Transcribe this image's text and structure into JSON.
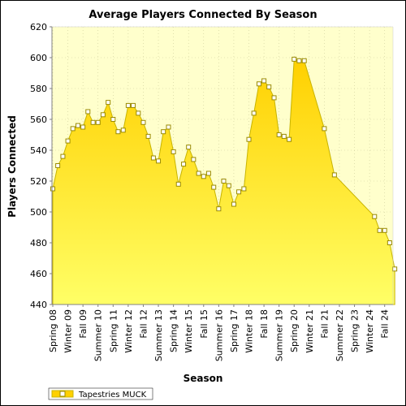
{
  "chart_data": {
    "type": "area",
    "title": "Average Players Connected By Season",
    "xlabel": "Season",
    "ylabel": "Players Connected",
    "ylim": [
      440,
      620
    ],
    "yticks": [
      440,
      460,
      480,
      500,
      520,
      540,
      560,
      580,
      600,
      620
    ],
    "grid": true,
    "legend_position": "bottom-left",
    "colors": {
      "fill_top": "#ffd000",
      "fill_bottom": "#ffff66",
      "line": "#c8b400",
      "plot_bg": "#ffffcc",
      "marker_fill": "#ffffff",
      "marker_stroke": "#9a8a00"
    },
    "x_tick_labels": [
      "Spring 08",
      "Winter 09",
      "Fall 09",
      "Summer 10",
      "Spring 11",
      "Winter 12",
      "Fall 12",
      "Summer 13",
      "Spring 14",
      "Winter 15",
      "Fall 15",
      "Summer 16",
      "Spring 17",
      "Winter 18",
      "Fall 18",
      "Summer 19",
      "Spring 20",
      "Winter 21",
      "Fall 21",
      "Summer 22",
      "Spring 23",
      "Winter 24",
      "Fall 24"
    ],
    "series": [
      {
        "name": "Tapestries MUCK",
        "points": [
          {
            "x": 0.0,
            "y": 515
          },
          {
            "x": 0.33,
            "y": 530
          },
          {
            "x": 0.67,
            "y": 536
          },
          {
            "x": 1.0,
            "y": 546
          },
          {
            "x": 1.33,
            "y": 554
          },
          {
            "x": 1.67,
            "y": 556
          },
          {
            "x": 2.0,
            "y": 555
          },
          {
            "x": 2.33,
            "y": 565
          },
          {
            "x": 2.67,
            "y": 558
          },
          {
            "x": 3.0,
            "y": 558
          },
          {
            "x": 3.33,
            "y": 563
          },
          {
            "x": 3.67,
            "y": 571
          },
          {
            "x": 4.0,
            "y": 560
          },
          {
            "x": 4.33,
            "y": 552
          },
          {
            "x": 4.67,
            "y": 553
          },
          {
            "x": 5.0,
            "y": 569
          },
          {
            "x": 5.33,
            "y": 569
          },
          {
            "x": 5.67,
            "y": 564
          },
          {
            "x": 6.0,
            "y": 558
          },
          {
            "x": 6.33,
            "y": 549
          },
          {
            "x": 6.67,
            "y": 535
          },
          {
            "x": 7.0,
            "y": 533
          },
          {
            "x": 7.33,
            "y": 552
          },
          {
            "x": 7.67,
            "y": 555
          },
          {
            "x": 8.0,
            "y": 539
          },
          {
            "x": 8.33,
            "y": 518
          },
          {
            "x": 8.67,
            "y": 531
          },
          {
            "x": 9.0,
            "y": 542
          },
          {
            "x": 9.33,
            "y": 534
          },
          {
            "x": 9.67,
            "y": 525
          },
          {
            "x": 10.0,
            "y": 523
          },
          {
            "x": 10.33,
            "y": 525
          },
          {
            "x": 10.67,
            "y": 516
          },
          {
            "x": 11.0,
            "y": 502
          },
          {
            "x": 11.33,
            "y": 520
          },
          {
            "x": 11.67,
            "y": 517
          },
          {
            "x": 12.0,
            "y": 505
          },
          {
            "x": 12.33,
            "y": 513
          },
          {
            "x": 12.67,
            "y": 515
          },
          {
            "x": 13.0,
            "y": 547
          },
          {
            "x": 13.33,
            "y": 564
          },
          {
            "x": 13.67,
            "y": 583
          },
          {
            "x": 14.0,
            "y": 585
          },
          {
            "x": 14.33,
            "y": 581
          },
          {
            "x": 14.67,
            "y": 574
          },
          {
            "x": 15.0,
            "y": 550
          },
          {
            "x": 15.33,
            "y": 549
          },
          {
            "x": 15.67,
            "y": 547
          },
          {
            "x": 16.0,
            "y": 599
          },
          {
            "x": 16.33,
            "y": 598
          },
          {
            "x": 16.67,
            "y": 598
          },
          {
            "x": 18.0,
            "y": 554
          },
          {
            "x": 18.67,
            "y": 524
          },
          {
            "x": 21.33,
            "y": 497
          },
          {
            "x": 21.67,
            "y": 488
          },
          {
            "x": 22.0,
            "y": 488
          },
          {
            "x": 22.33,
            "y": 480
          },
          {
            "x": 22.67,
            "y": 463
          }
        ]
      }
    ]
  }
}
